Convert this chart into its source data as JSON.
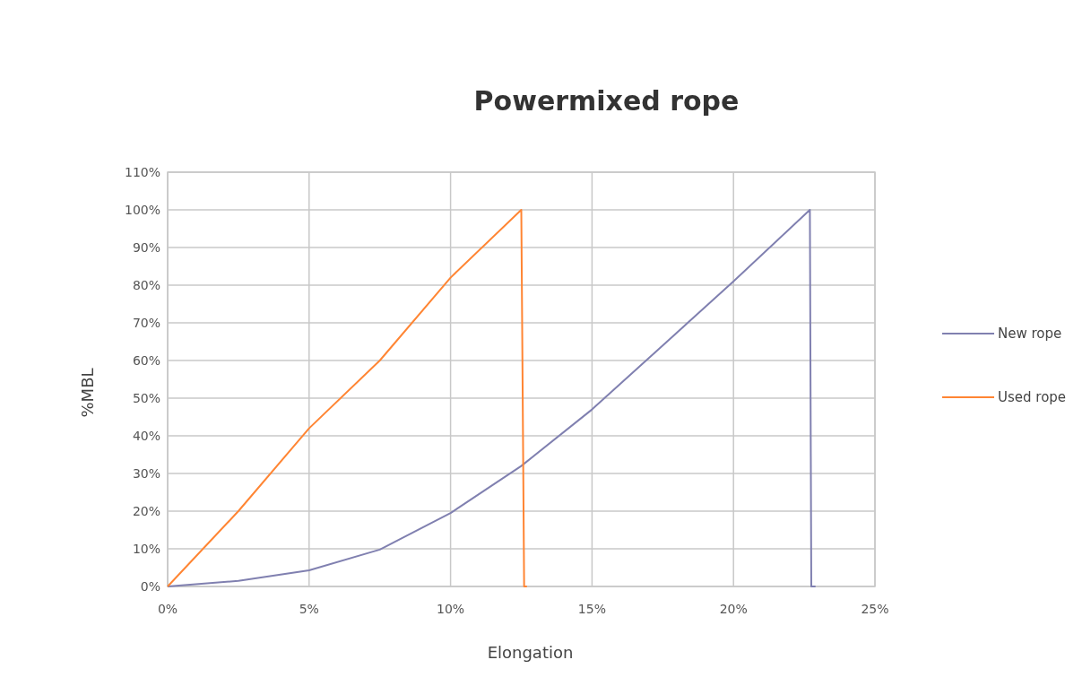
{
  "chart_data": {
    "type": "line",
    "title": "Powermixed rope",
    "xlabel": "Elongation",
    "ylabel": "%MBL",
    "xlim": [
      0,
      25
    ],
    "xticks": [
      {
        "value": 0,
        "label": "0%"
      },
      {
        "value": 5,
        "label": "5%"
      },
      {
        "value": 10,
        "label": "10%"
      },
      {
        "value": 15,
        "label": "15%"
      },
      {
        "value": 20,
        "label": "20%"
      },
      {
        "value": 25,
        "label": "25%"
      }
    ],
    "ylim": [
      0,
      110
    ],
    "yticks": [
      {
        "value": 0,
        "label": "0%"
      },
      {
        "value": 10,
        "label": "10%"
      },
      {
        "value": 20,
        "label": "20%"
      },
      {
        "value": 30,
        "label": "30%"
      },
      {
        "value": 40,
        "label": "40%"
      },
      {
        "value": 50,
        "label": "50%"
      },
      {
        "value": 60,
        "label": "60%"
      },
      {
        "value": 70,
        "label": "70%"
      },
      {
        "value": 80,
        "label": "80%"
      },
      {
        "value": 90,
        "label": "90%"
      },
      {
        "value": 100,
        "label": "100%"
      },
      {
        "value": 110,
        "label": "110%"
      }
    ],
    "grid": true,
    "legend": "right",
    "marker": "none",
    "line_style": "solid",
    "series": [
      {
        "name": "New rope",
        "color": "#8080b0",
        "x": [
          0,
          2.5,
          5,
          7.5,
          10,
          12.5,
          15,
          17.5,
          20,
          22.7,
          22.75,
          22.9
        ],
        "values": [
          0,
          1.5,
          4.3,
          9.8,
          19.5,
          32,
          47,
          64,
          81,
          100,
          0,
          0
        ]
      },
      {
        "name": "Used rope",
        "color": "#ff8533",
        "x": [
          0,
          2.5,
          5,
          7.5,
          10,
          12.5,
          12.6,
          12.7
        ],
        "values": [
          0,
          20,
          42,
          60,
          82,
          100,
          0,
          0
        ]
      }
    ]
  }
}
